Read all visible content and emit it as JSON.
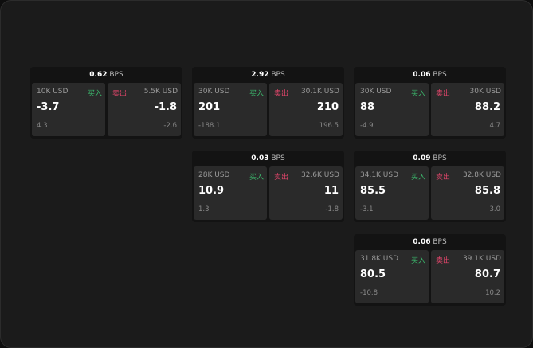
{
  "buy_label": "买入",
  "sell_label": "卖出",
  "unit": "BPS",
  "colors": {
    "buy": "#3bb36a",
    "sell": "#e0456a"
  },
  "panels": [
    {
      "spread": "0.62",
      "bid": {
        "size": "10K USD",
        "price": "-3.7",
        "change": "4.3"
      },
      "ask": {
        "size": "5.5K USD",
        "price": "-1.8",
        "change": "-2.6"
      }
    },
    {
      "spread": "2.92",
      "bid": {
        "size": "30K USD",
        "price": "201",
        "change": "-188.1"
      },
      "ask": {
        "size": "30.1K USD",
        "price": "210",
        "change": "196.5"
      }
    },
    {
      "spread": "0.06",
      "bid": {
        "size": "30K USD",
        "price": "88",
        "change": "-4.9"
      },
      "ask": {
        "size": "30K USD",
        "price": "88.2",
        "change": "4.7"
      }
    },
    {
      "spread": "0.03",
      "bid": {
        "size": "28K USD",
        "price": "10.9",
        "change": "1.3"
      },
      "ask": {
        "size": "32.6K USD",
        "price": "11",
        "change": "-1.8"
      }
    },
    {
      "spread": "0.09",
      "bid": {
        "size": "34.1K USD",
        "price": "85.5",
        "change": "-3.1"
      },
      "ask": {
        "size": "32.8K USD",
        "price": "85.8",
        "change": "3.0"
      }
    },
    {
      "spread": "0.06",
      "bid": {
        "size": "31.8K USD",
        "price": "80.5",
        "change": "-10.8"
      },
      "ask": {
        "size": "39.1K USD",
        "price": "80.7",
        "change": "10.2"
      }
    }
  ]
}
